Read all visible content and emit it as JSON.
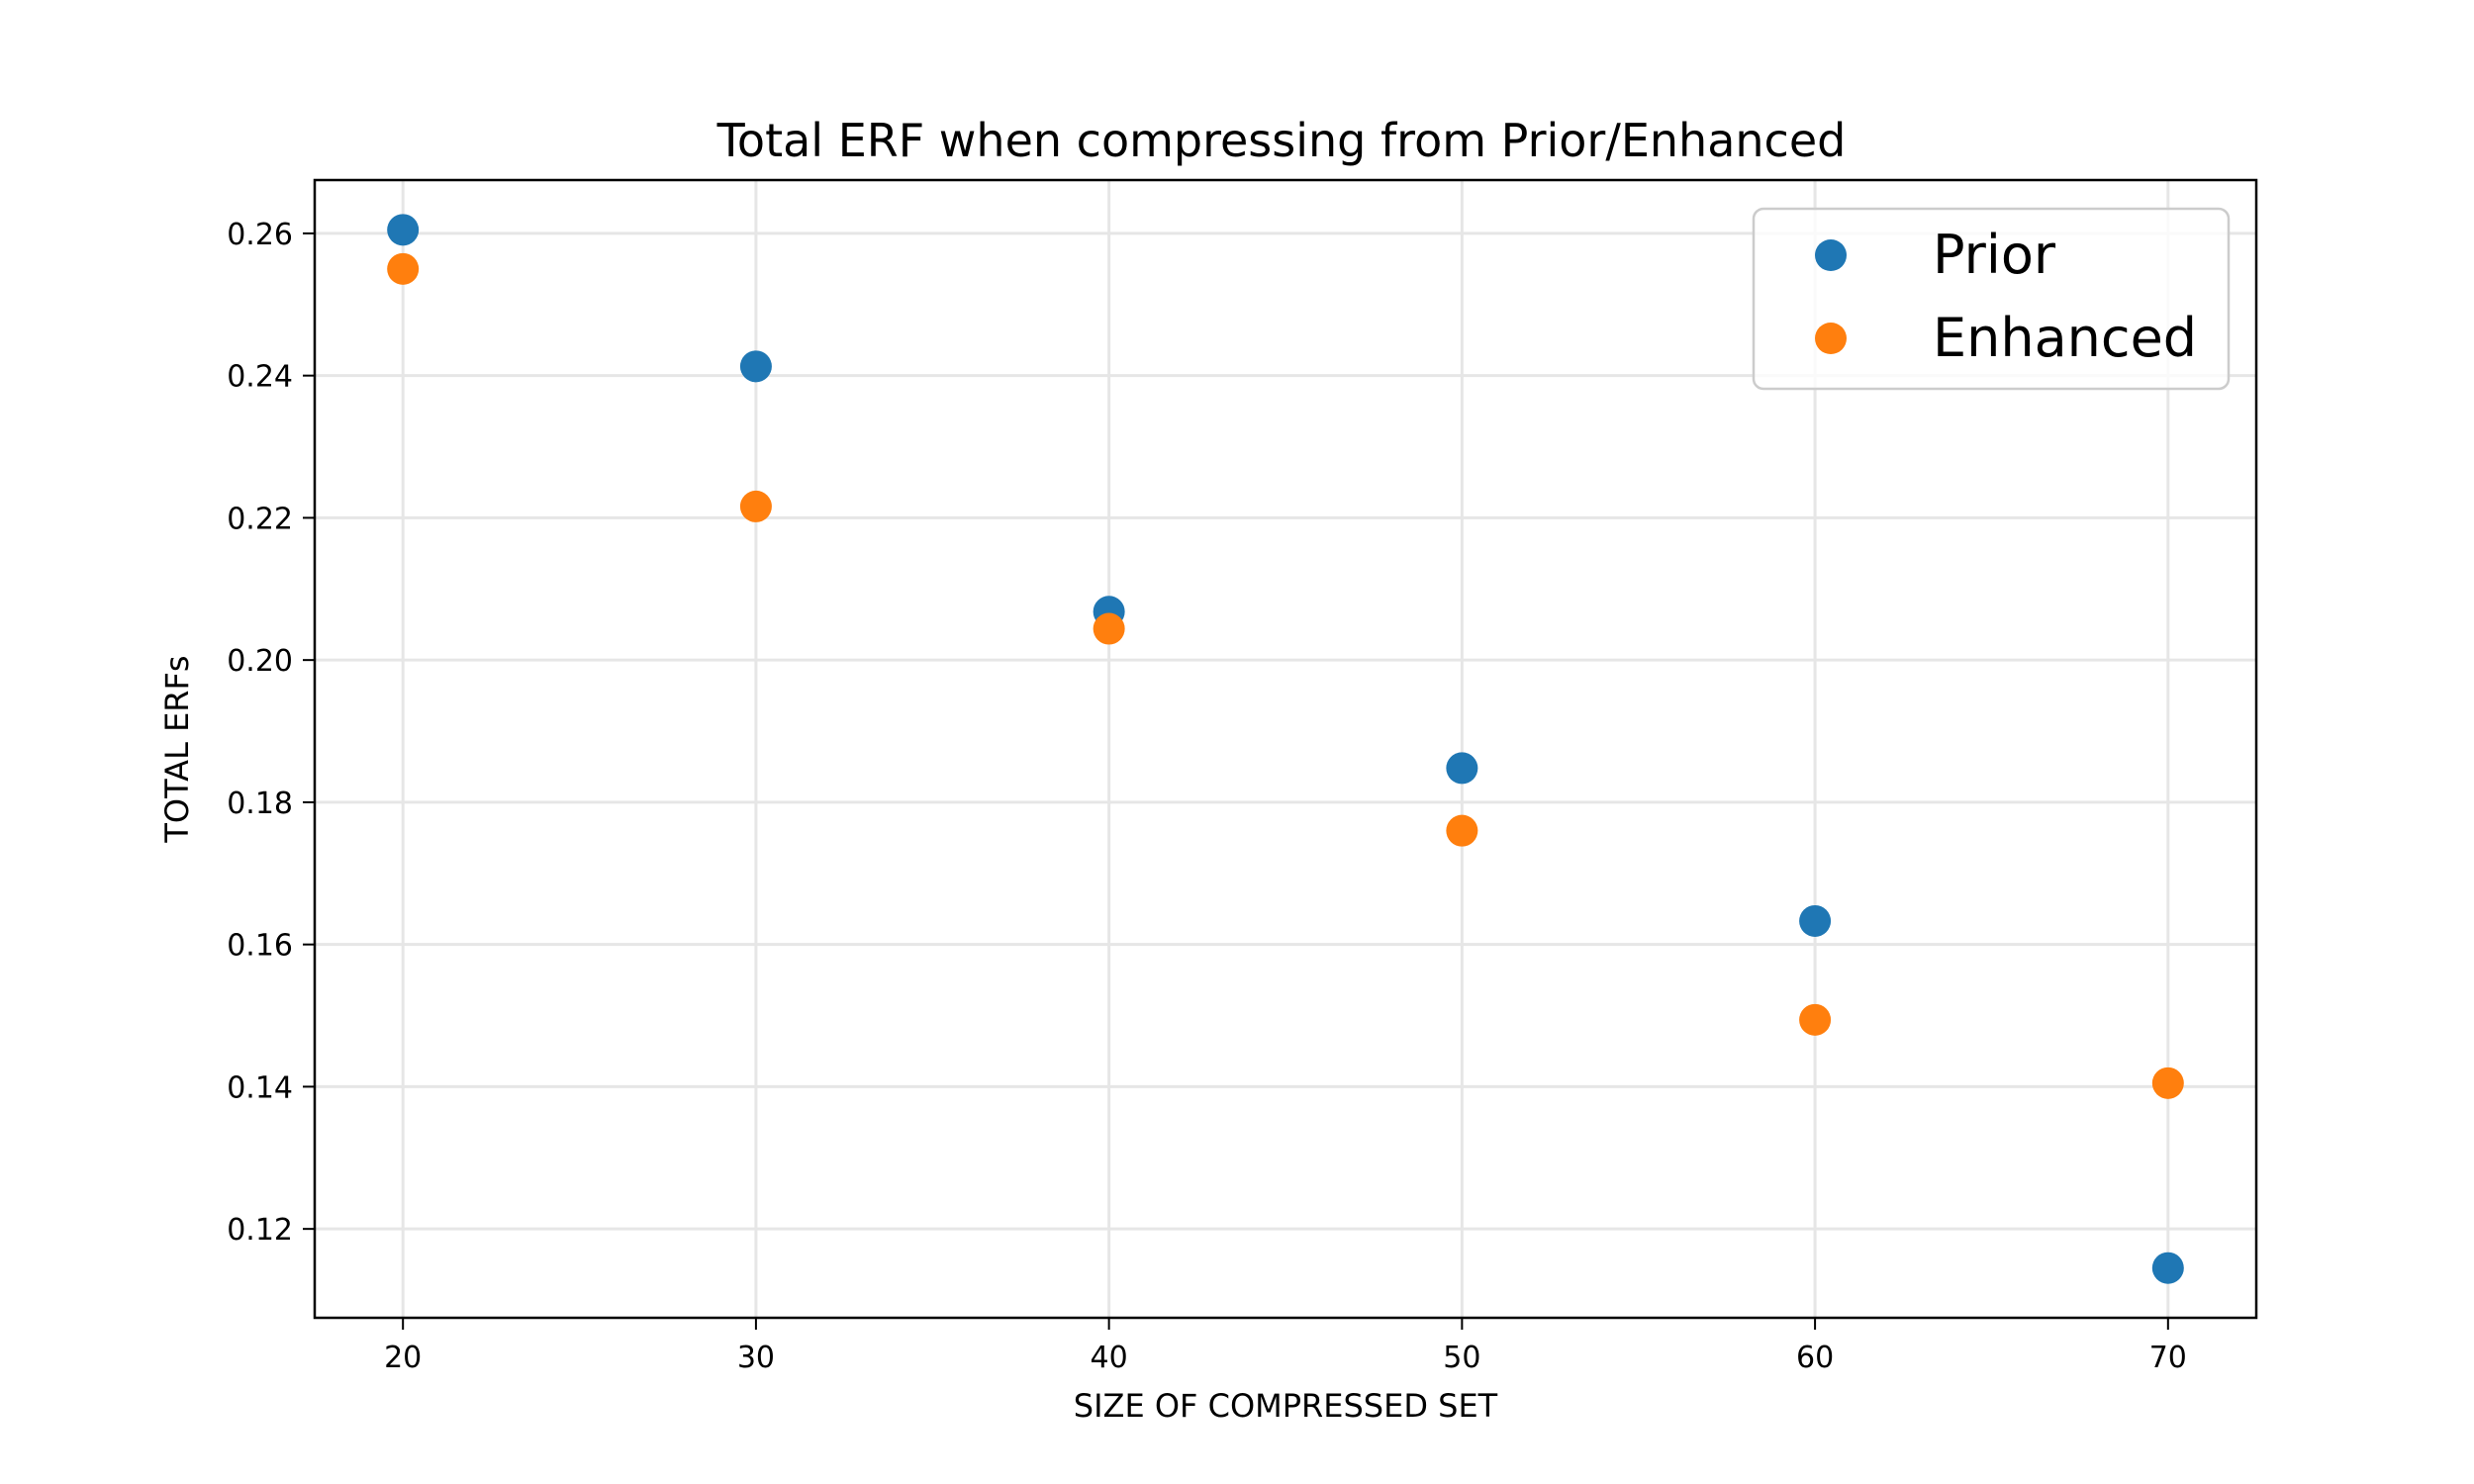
{
  "chart_data": {
    "type": "scatter",
    "title": "Total ERF when compressing from Prior/Enhanced",
    "xlabel": "SIZE OF COMPRESSED SET",
    "ylabel": "TOTAL ERFs",
    "xlim": [
      17.5,
      72.5
    ],
    "ylim": [
      0.1075,
      0.2675
    ],
    "xticks": [
      "20",
      "30",
      "40",
      "50",
      "60",
      "70"
    ],
    "yticks": [
      "0.12",
      "0.14",
      "0.16",
      "0.18",
      "0.20",
      "0.22",
      "0.24",
      "0.26"
    ],
    "grid": true,
    "legend_position": "top-right",
    "x": [
      20,
      30,
      40,
      50,
      60,
      70
    ],
    "series": [
      {
        "name": "Prior",
        "color": "#1f77b4",
        "values": [
          0.2605,
          0.2413,
          0.2068,
          0.1848,
          0.1633,
          0.1145
        ]
      },
      {
        "name": "Enhanced",
        "color": "#ff7f0e",
        "values": [
          0.255,
          0.2216,
          0.2044,
          0.176,
          0.1494,
          0.1405
        ]
      }
    ]
  }
}
